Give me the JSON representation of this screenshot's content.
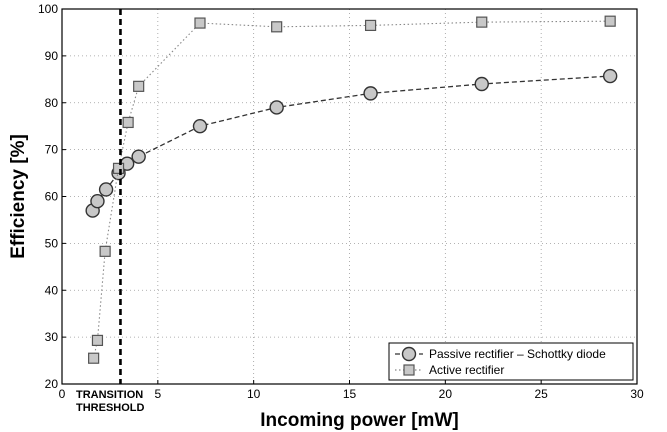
{
  "chart_data": {
    "type": "line",
    "xlabel": "Incoming power [mW]",
    "ylabel": "Efficiency [%]",
    "xlim": [
      0,
      30
    ],
    "ylim": [
      20,
      100
    ],
    "xticks": [
      0,
      5,
      10,
      15,
      20,
      25,
      30
    ],
    "yticks": [
      20,
      30,
      40,
      50,
      60,
      70,
      80,
      90,
      100
    ],
    "grid": true,
    "legend_position": "bottom-right",
    "threshold": {
      "x": 3.05,
      "label_line1": "TRANSITION",
      "label_line2": "THRESHOLD"
    },
    "series": [
      {
        "name": "Passive rectifier – Schottky diode",
        "marker": "circle",
        "line": "dashed",
        "color": "#333333",
        "fill": "#c8c8c8",
        "points": [
          {
            "x": 1.6,
            "y": 57.0
          },
          {
            "x": 1.85,
            "y": 59.0
          },
          {
            "x": 2.3,
            "y": 61.5
          },
          {
            "x": 2.95,
            "y": 65.0
          },
          {
            "x": 3.4,
            "y": 67.0
          },
          {
            "x": 4.0,
            "y": 68.5
          },
          {
            "x": 7.2,
            "y": 75.0
          },
          {
            "x": 11.2,
            "y": 79.0
          },
          {
            "x": 16.1,
            "y": 82.0
          },
          {
            "x": 21.9,
            "y": 84.0
          },
          {
            "x": 28.6,
            "y": 85.7
          }
        ]
      },
      {
        "name": "Active rectifier",
        "marker": "square",
        "line": "dotted",
        "color": "#888888",
        "fill": "#c8c8c8",
        "points": [
          {
            "x": 1.65,
            "y": 25.5
          },
          {
            "x": 1.85,
            "y": 29.3
          },
          {
            "x": 2.25,
            "y": 48.3
          },
          {
            "x": 2.95,
            "y": 66.0
          },
          {
            "x": 3.45,
            "y": 75.8
          },
          {
            "x": 4.0,
            "y": 83.5
          },
          {
            "x": 7.2,
            "y": 97.0
          },
          {
            "x": 11.2,
            "y": 96.2
          },
          {
            "x": 16.1,
            "y": 96.5
          },
          {
            "x": 21.9,
            "y": 97.2
          },
          {
            "x": 28.6,
            "y": 97.4
          }
        ]
      }
    ]
  }
}
